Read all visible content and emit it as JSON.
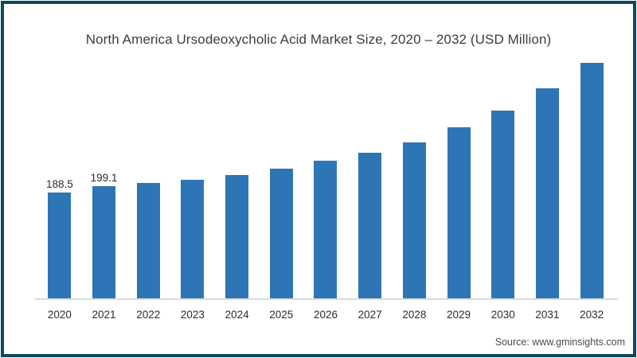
{
  "chart_data": {
    "type": "bar",
    "title": "North America Ursodeoxycholic Acid Market Size, 2020 – 2032 (USD Million)",
    "categories": [
      "2020",
      "2021",
      "2022",
      "2023",
      "2024",
      "2025",
      "2026",
      "2027",
      "2028",
      "2029",
      "2030",
      "2031",
      "2032"
    ],
    "values": [
      188.5,
      199.1,
      205.4,
      211.2,
      219.6,
      230.0,
      244.0,
      258.2,
      277.5,
      303.4,
      333.6,
      372.6,
      418.8
    ],
    "bar_labels": [
      "188.5",
      "199.1",
      "",
      "",
      "",
      "",
      "",
      "",
      "",
      "",
      "",
      "",
      ""
    ],
    "xlabel": "",
    "ylabel": "",
    "ylim": [
      0,
      424
    ],
    "grid": false,
    "legend": false,
    "bar_color": "#2e75b6",
    "axis_line_color": "#dadada",
    "frame_border_color": "#0c4a5f",
    "source": "Source: www.gminsights.com"
  }
}
